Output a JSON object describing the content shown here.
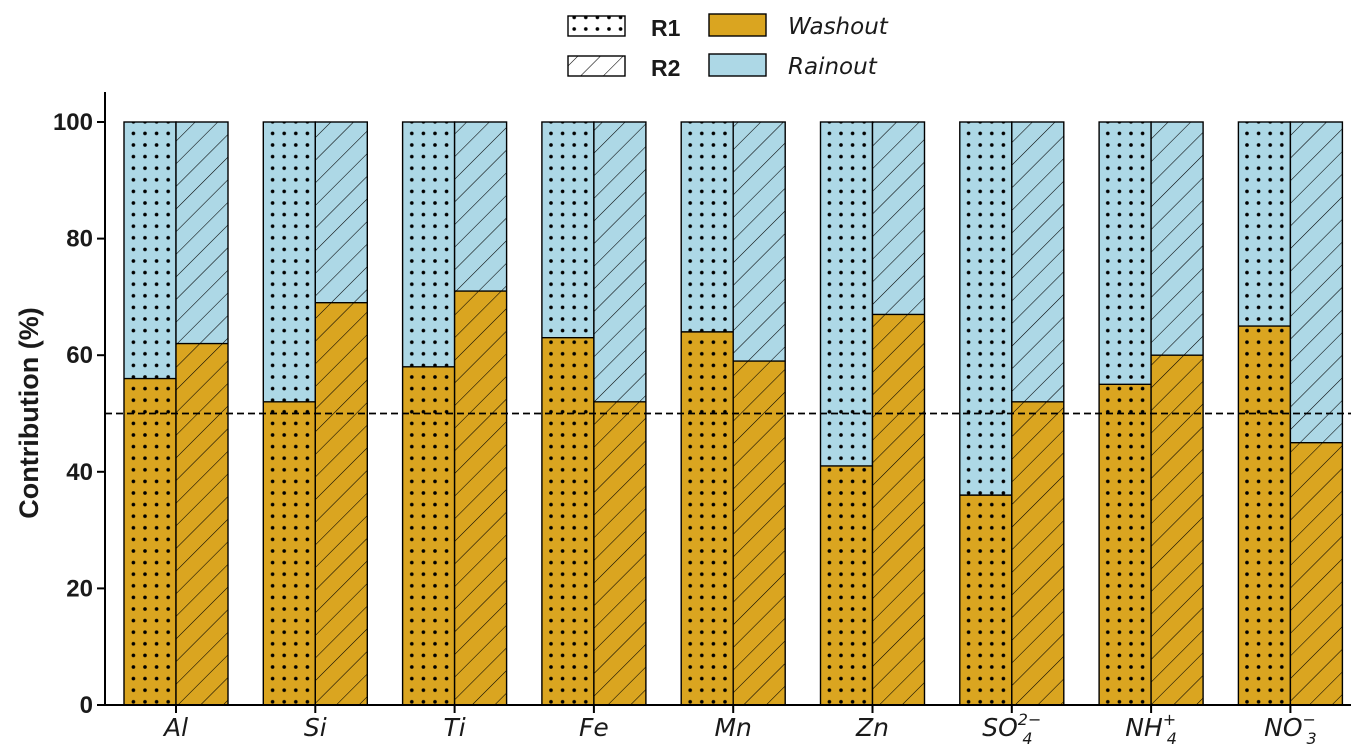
{
  "chart_data": {
    "type": "bar",
    "stacked": true,
    "ylabel": "Contribution (%)",
    "ylim": [
      0,
      100
    ],
    "yticks": [
      0,
      20,
      40,
      60,
      80,
      100
    ],
    "reference_line": 50,
    "categories": [
      {
        "base": "Al",
        "sup": "",
        "sub": ""
      },
      {
        "base": "Si",
        "sup": "",
        "sub": ""
      },
      {
        "base": "Ti",
        "sup": "",
        "sub": ""
      },
      {
        "base": "Fe",
        "sup": "",
        "sub": ""
      },
      {
        "base": "Mn",
        "sup": "",
        "sub": ""
      },
      {
        "base": "Zn",
        "sup": "",
        "sub": ""
      },
      {
        "base": "SO",
        "sub": "4",
        "sup": "2−"
      },
      {
        "base": "NH",
        "sub": "4",
        "sup": "+"
      },
      {
        "base": "NO",
        "sub": "3",
        "sup": "−"
      }
    ],
    "groups": [
      {
        "name": "R1",
        "pattern": "dots"
      },
      {
        "name": "R2",
        "pattern": "hatch"
      }
    ],
    "components": [
      {
        "name": "Washout",
        "color": "#DAA520"
      },
      {
        "name": "Rainout",
        "color": "#ADD8E6"
      }
    ],
    "washout": {
      "R1": [
        56,
        52,
        58,
        63,
        64,
        41,
        36,
        55,
        65
      ],
      "R2": [
        62,
        69,
        71,
        52,
        59,
        67,
        52,
        60,
        45
      ]
    },
    "rainout": {
      "R1": [
        44,
        48,
        42,
        37,
        36,
        59,
        64,
        45,
        35
      ],
      "R2": [
        38,
        31,
        29,
        48,
        41,
        33,
        48,
        40,
        55
      ]
    },
    "legend": {
      "groups": [
        "R1",
        "R2"
      ],
      "components": [
        "Washout",
        "Rainout"
      ],
      "position": "top-center"
    },
    "grid": false
  }
}
